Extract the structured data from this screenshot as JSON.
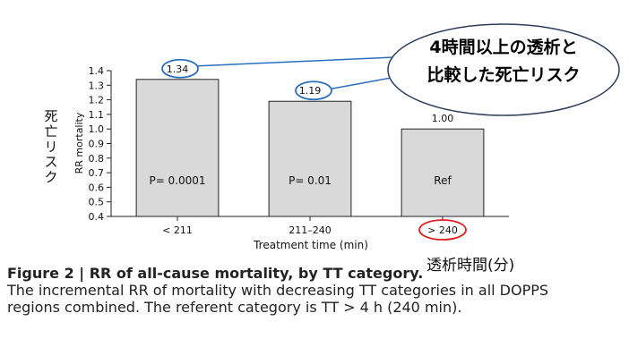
{
  "chart_data": {
    "type": "bar",
    "categories": [
      "< 211",
      "211–240",
      "> 240"
    ],
    "values": [
      1.34,
      1.19,
      1.0
    ],
    "value_labels": [
      "1.34",
      "1.19",
      "1.00"
    ],
    "bar_annotations": [
      "P= 0.0001",
      "P= 0.01",
      "Ref"
    ],
    "xlabel": "Treatment time (min)",
    "ylabel": "RR mortality",
    "ylim": [
      0.4,
      1.4
    ],
    "yticks": [
      "0.4",
      "0.5",
      "0.6",
      "0.7",
      "0.8",
      "0.9",
      "1.0",
      "1.1",
      "1.2",
      "1.3",
      "1.4"
    ],
    "bar_color": "#d9d9d9",
    "grid": false
  },
  "caption": {
    "figure_label": "Figure 2",
    "title": "RR of all-cause mortality, by TT category.",
    "text": "The incremental RR of mortality with decreasing TT categories in all DOPPS regions combined. The referent category is TT > 4 h (240 min)."
  },
  "annotations": {
    "ja_ylabel": "死亡リスク",
    "ja_xlabel": "透析時間(分)",
    "bubble_line1": "4時間以上の透析と",
    "bubble_line2": "比較した死亡リスク",
    "highlight_color_blue": "#2a6ebf",
    "highlight_color_red": "#e02020"
  }
}
